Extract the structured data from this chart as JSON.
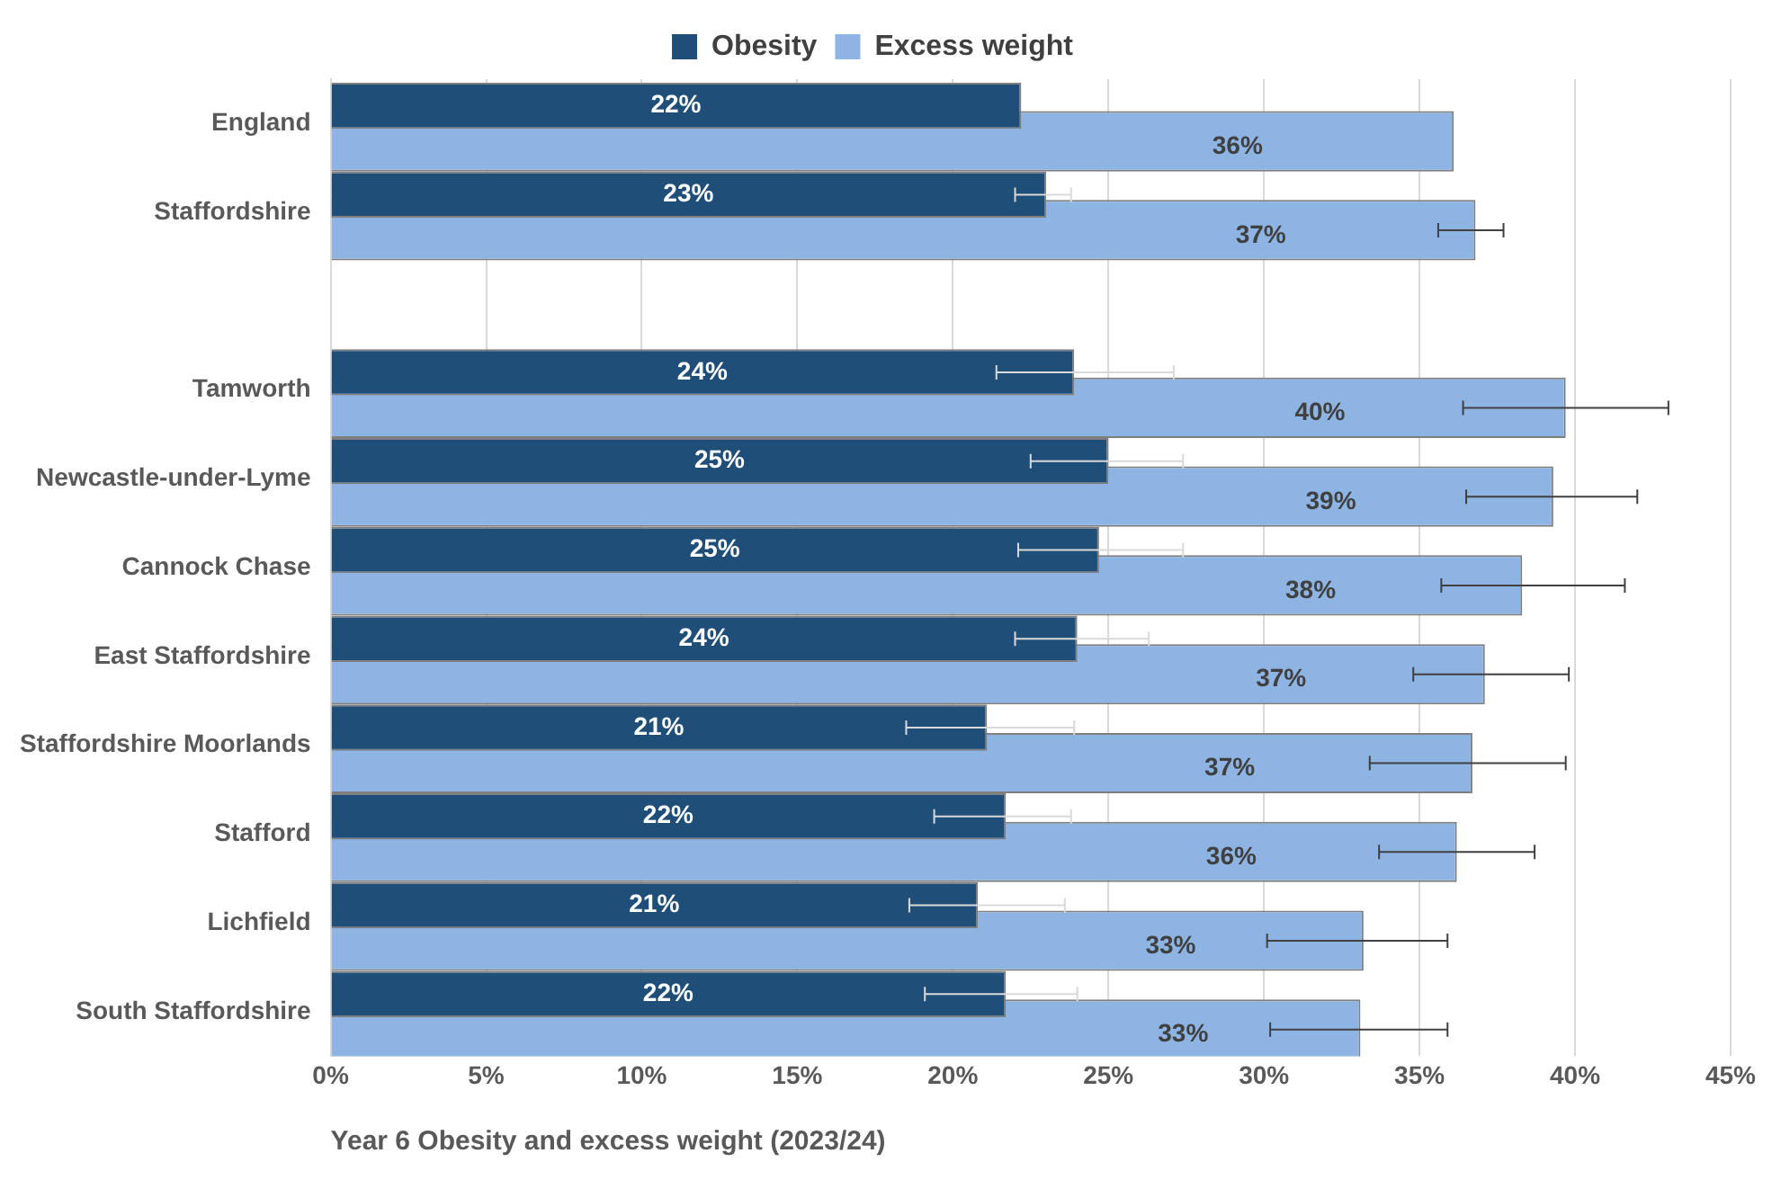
{
  "chart_data": {
    "type": "bar",
    "orientation": "horizontal",
    "xlabel": "Year 6 Obesity and excess weight (2023/24)",
    "categories": [
      "England",
      "Staffordshire",
      null,
      "Tamworth",
      "Newcastle-under-Lyme",
      "Cannock Chase",
      "East Staffordshire",
      "Staffordshire Moorlands",
      "Stafford",
      "Lichfield",
      "South Staffordshire"
    ],
    "series": [
      {
        "name": "Obesity",
        "color": "#1f4e79",
        "values": [
          22.2,
          23.0,
          null,
          23.9,
          25.0,
          24.7,
          24.0,
          21.1,
          21.7,
          20.8,
          21.7
        ],
        "errors": [
          null,
          [
            22.0,
            23.8
          ],
          null,
          [
            21.4,
            27.1
          ],
          [
            22.5,
            27.4
          ],
          [
            22.1,
            27.4
          ],
          [
            22.0,
            26.3
          ],
          [
            18.5,
            23.9
          ],
          [
            19.4,
            23.8
          ],
          [
            18.6,
            23.6
          ],
          [
            19.1,
            24.0
          ]
        ],
        "value_labels": [
          "22%",
          "23%",
          null,
          "24%",
          "25%",
          "25%",
          "24%",
          "21%",
          "22%",
          "21%",
          "22%"
        ]
      },
      {
        "name": "Excess weight",
        "color": "#8eb4e3",
        "values": [
          36.1,
          36.8,
          null,
          39.7,
          39.3,
          38.3,
          37.1,
          36.7,
          36.2,
          33.2,
          33.1
        ],
        "errors": [
          null,
          [
            35.6,
            37.7
          ],
          null,
          [
            36.4,
            43.0
          ],
          [
            36.5,
            42.0
          ],
          [
            35.7,
            41.6
          ],
          [
            34.8,
            39.8
          ],
          [
            33.4,
            39.7
          ],
          [
            33.7,
            38.7
          ],
          [
            30.1,
            35.9
          ],
          [
            30.2,
            35.9
          ]
        ],
        "value_labels": [
          "36%",
          "37%",
          null,
          "40%",
          "39%",
          "38%",
          "37%",
          "37%",
          "36%",
          "33%",
          "33%"
        ]
      }
    ],
    "xlim": [
      0,
      45
    ],
    "xticks": [
      {
        "value": 0,
        "label": "0%"
      },
      {
        "value": 5,
        "label": "5%"
      },
      {
        "value": 10,
        "label": "10%"
      },
      {
        "value": 15,
        "label": "15%"
      },
      {
        "value": 20,
        "label": "20%"
      },
      {
        "value": 25,
        "label": "25%"
      },
      {
        "value": 30,
        "label": "30%"
      },
      {
        "value": 35,
        "label": "35%"
      },
      {
        "value": 40,
        "label": "40%"
      },
      {
        "value": 45,
        "label": "45%"
      }
    ],
    "grid": "x",
    "legend": "top"
  }
}
